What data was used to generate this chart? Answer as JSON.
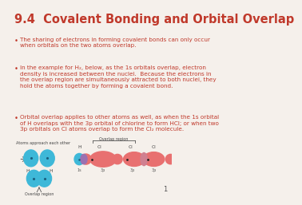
{
  "title": "9.4  Covalent Bonding and Orbital Overlap",
  "title_color": "#c0392b",
  "title_fontsize": 10.5,
  "bg_color": "#f5f0eb",
  "bullet_color": "#c0392b",
  "bullet_fontsize": 5.2,
  "bullets": [
    "The sharing of electrons in forming covalent bonds can only occur\nwhen orbitals on the two atoms overlap.",
    "In the example for H₂, below, as the 1s orbitals overlap, electron\ndensity is increased between the nuclei.  Because the electrons in\nthe overlap region are simultaneously attracted to both nuclei, they\nhold the atoms together by forming a covalent bond.",
    "Orbital overlap applies to other atoms as well, as when the 1s orbital\nof H overlaps with the 3p orbital of chlorine to form HCl; or when two\n3p orbitals on Cl atoms overlap to form the Cl₂ molecule."
  ],
  "slide_number": "1",
  "cyan_color": "#3eb8d8",
  "pink_color": "#e87070",
  "overlap_color": "#9b70b0",
  "dark_cyan": "#2a90aa",
  "page_num_fontsize": 6
}
